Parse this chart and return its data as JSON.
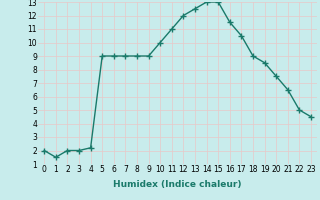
{
  "x": [
    0,
    1,
    2,
    3,
    4,
    5,
    6,
    7,
    8,
    9,
    10,
    11,
    12,
    13,
    14,
    15,
    16,
    17,
    18,
    19,
    20,
    21,
    22,
    23
  ],
  "y": [
    2,
    1.5,
    2,
    2,
    2.2,
    9,
    9,
    9,
    9,
    9,
    10,
    11,
    12,
    12.5,
    13,
    13,
    11.5,
    10.5,
    9,
    8.5,
    7.5,
    6.5,
    5,
    4.5
  ],
  "xlabel": "Humidex (Indice chaleur)",
  "xlim": [
    -0.5,
    23.5
  ],
  "ylim": [
    1,
    13
  ],
  "yticks": [
    1,
    2,
    3,
    4,
    5,
    6,
    7,
    8,
    9,
    10,
    11,
    12,
    13
  ],
  "xticks": [
    0,
    1,
    2,
    3,
    4,
    5,
    6,
    7,
    8,
    9,
    10,
    11,
    12,
    13,
    14,
    15,
    16,
    17,
    18,
    19,
    20,
    21,
    22,
    23
  ],
  "line_color": "#1a7a6a",
  "bg_color": "#c8ecec",
  "grid_color": "#e8c8c8",
  "marker": "+",
  "marker_size": 4,
  "line_width": 1.0,
  "tick_fontsize": 5.5,
  "xlabel_fontsize": 6.5
}
